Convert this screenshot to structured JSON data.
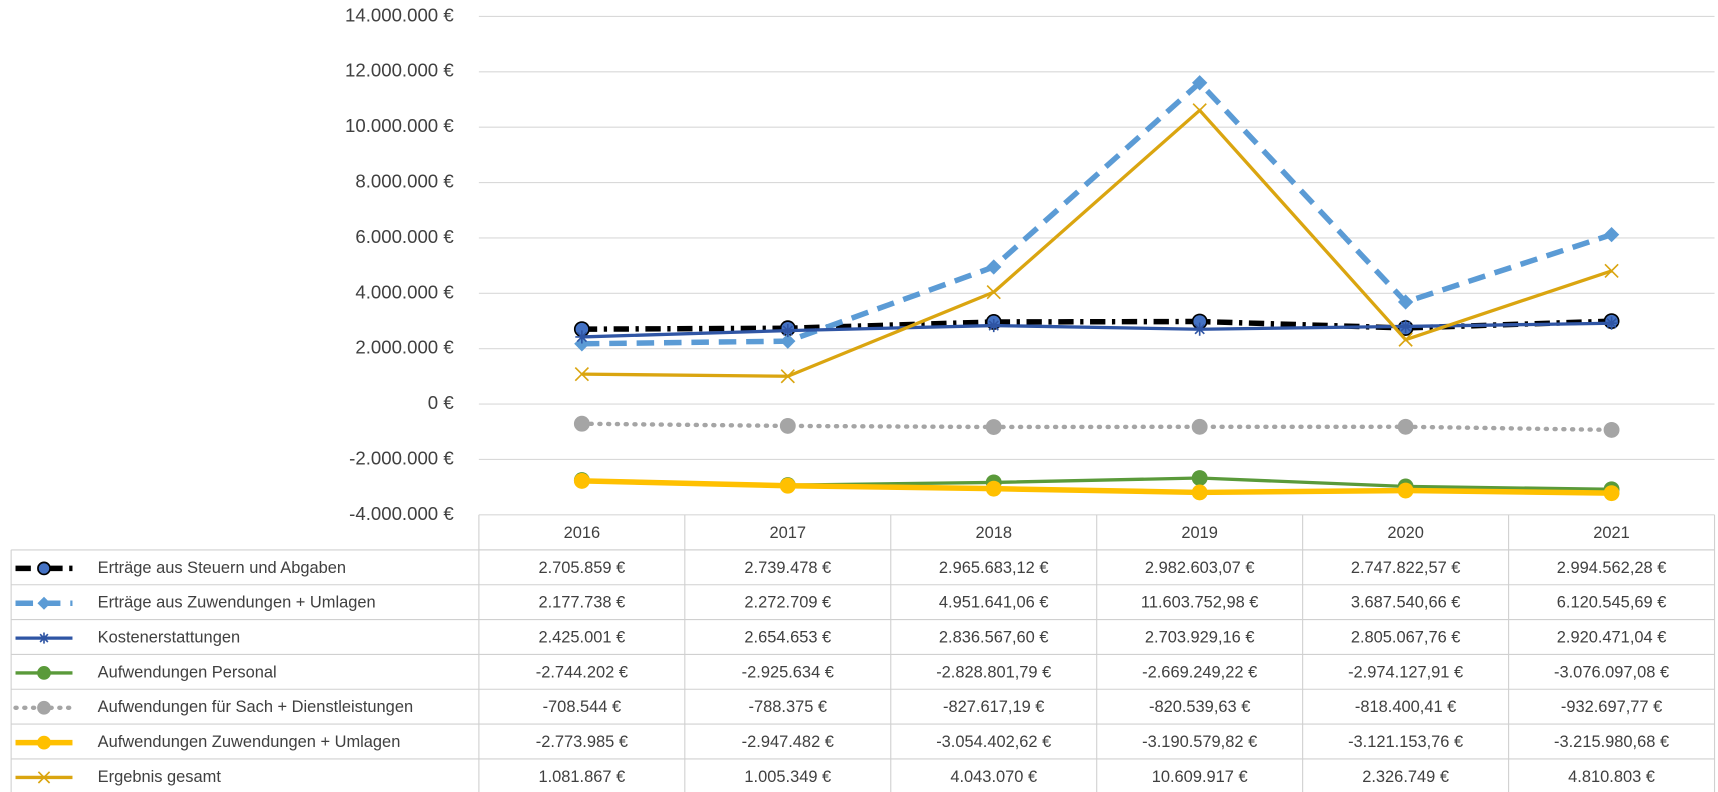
{
  "chart_data": {
    "type": "line",
    "categories": [
      "2016",
      "2017",
      "2018",
      "2019",
      "2020",
      "2021"
    ],
    "ylim": [
      -4000000,
      14000000
    ],
    "yticks": [
      {
        "value": -4000000,
        "label": "-4.000.000 €"
      },
      {
        "value": -2000000,
        "label": "-2.000.000 €"
      },
      {
        "value": 0,
        "label": "0 €"
      },
      {
        "value": 2000000,
        "label": "2.000.000 €"
      },
      {
        "value": 4000000,
        "label": "4.000.000 €"
      },
      {
        "value": 6000000,
        "label": "6.000.000 €"
      },
      {
        "value": 8000000,
        "label": "8.000.000 €"
      },
      {
        "value": 10000000,
        "label": "10.000.000 €"
      },
      {
        "value": 12000000,
        "label": "12.000.000 €"
      },
      {
        "value": 14000000,
        "label": "14.000.000 €"
      }
    ],
    "grid": true,
    "series": [
      {
        "name": "Erträge aus Steuern und Abgaben",
        "color": "#000000",
        "marker_color": "#4472c4",
        "dash": "14 6 3 6",
        "width": 5,
        "marker": "circle",
        "values": [
          2705859,
          2739478,
          2965683.12,
          2982603.07,
          2747822.57,
          2994562.28
        ],
        "value_labels": [
          "2.705.859 €",
          "2.739.478 €",
          "2.965.683,12 €",
          "2.982.603,07 €",
          "2.747.822,57 €",
          "2.994.562,28 €"
        ]
      },
      {
        "name": "Erträge aus Zuwendungen + Umlagen",
        "color": "#5b9bd5",
        "marker_color": "#5b9bd5",
        "dash": "16 9",
        "width": 5,
        "marker": "diamond",
        "values": [
          2177738,
          2272709,
          4951641.06,
          11603752.98,
          3687540.66,
          6120545.69
        ],
        "value_labels": [
          "2.177.738 €",
          "2.272.709 €",
          "4.951.641,06 €",
          "11.603.752,98 €",
          "3.687.540,66 €",
          "6.120.545,69 €"
        ]
      },
      {
        "name": "Kostenerstattungen",
        "color": "#2f55a4",
        "marker_color": "#2f55a4",
        "dash": "",
        "width": 3,
        "marker": "star",
        "values": [
          2425001,
          2654653,
          2836567.6,
          2703929.16,
          2805067.76,
          2920471.04
        ],
        "value_labels": [
          "2.425.001 €",
          "2.654.653 €",
          "2.836.567,60 €",
          "2.703.929,16 €",
          "2.805.067,76 €",
          "2.920.471,04 €"
        ]
      },
      {
        "name": "Aufwendungen Personal",
        "color": "#5a9a3a",
        "marker_color": "#5a9a3a",
        "dash": "",
        "width": 3,
        "marker": "circle",
        "values": [
          -2744202,
          -2925634,
          -2828801.79,
          -2669249.22,
          -2974127.91,
          -3076097.08
        ],
        "value_labels": [
          "-2.744.202 €",
          "-2.925.634 €",
          "-2.828.801,79 €",
          "-2.669.249,22 €",
          "-2.974.127,91 €",
          "-3.076.097,08 €"
        ]
      },
      {
        "name": "Aufwendungen für Sach + Dienstleistungen",
        "color": "#a5a5a5",
        "marker_color": "#a5a5a5",
        "dash": "1 7",
        "width": 4,
        "marker": "circle",
        "values": [
          -708544,
          -788375,
          -827617.19,
          -820539.63,
          -818400.41,
          -932697.77
        ],
        "value_labels": [
          "-708.544 €",
          "-788.375 €",
          "-827.617,19 €",
          "-820.539,63 €",
          "-818.400,41 €",
          "-932.697,77 €"
        ]
      },
      {
        "name": "Aufwendungen Zuwendungen + Umlagen",
        "color": "#ffc000",
        "marker_color": "#ffc000",
        "dash": "",
        "width": 5,
        "marker": "circle",
        "values": [
          -2773985,
          -2947482,
          -3054402.62,
          -3190579.82,
          -3121153.76,
          -3215980.68
        ],
        "value_labels": [
          "-2.773.985 €",
          "-2.947.482 €",
          "-3.054.402,62 €",
          "-3.190.579,82 €",
          "-3.121.153,76 €",
          "-3.215.980,68 €"
        ]
      },
      {
        "name": "Ergebnis gesamt",
        "color": "#daa510",
        "marker_color": "#daa510",
        "dash": "",
        "width": 3,
        "marker": "x",
        "values": [
          1081867,
          1005349,
          4043070,
          10609917,
          2326749,
          4810803
        ],
        "value_labels": [
          "1.081.867 €",
          "1.005.349 €",
          "4.043.070 €",
          "10.609.917 €",
          "2.326.749 €",
          "4.810.803 €"
        ]
      }
    ]
  }
}
